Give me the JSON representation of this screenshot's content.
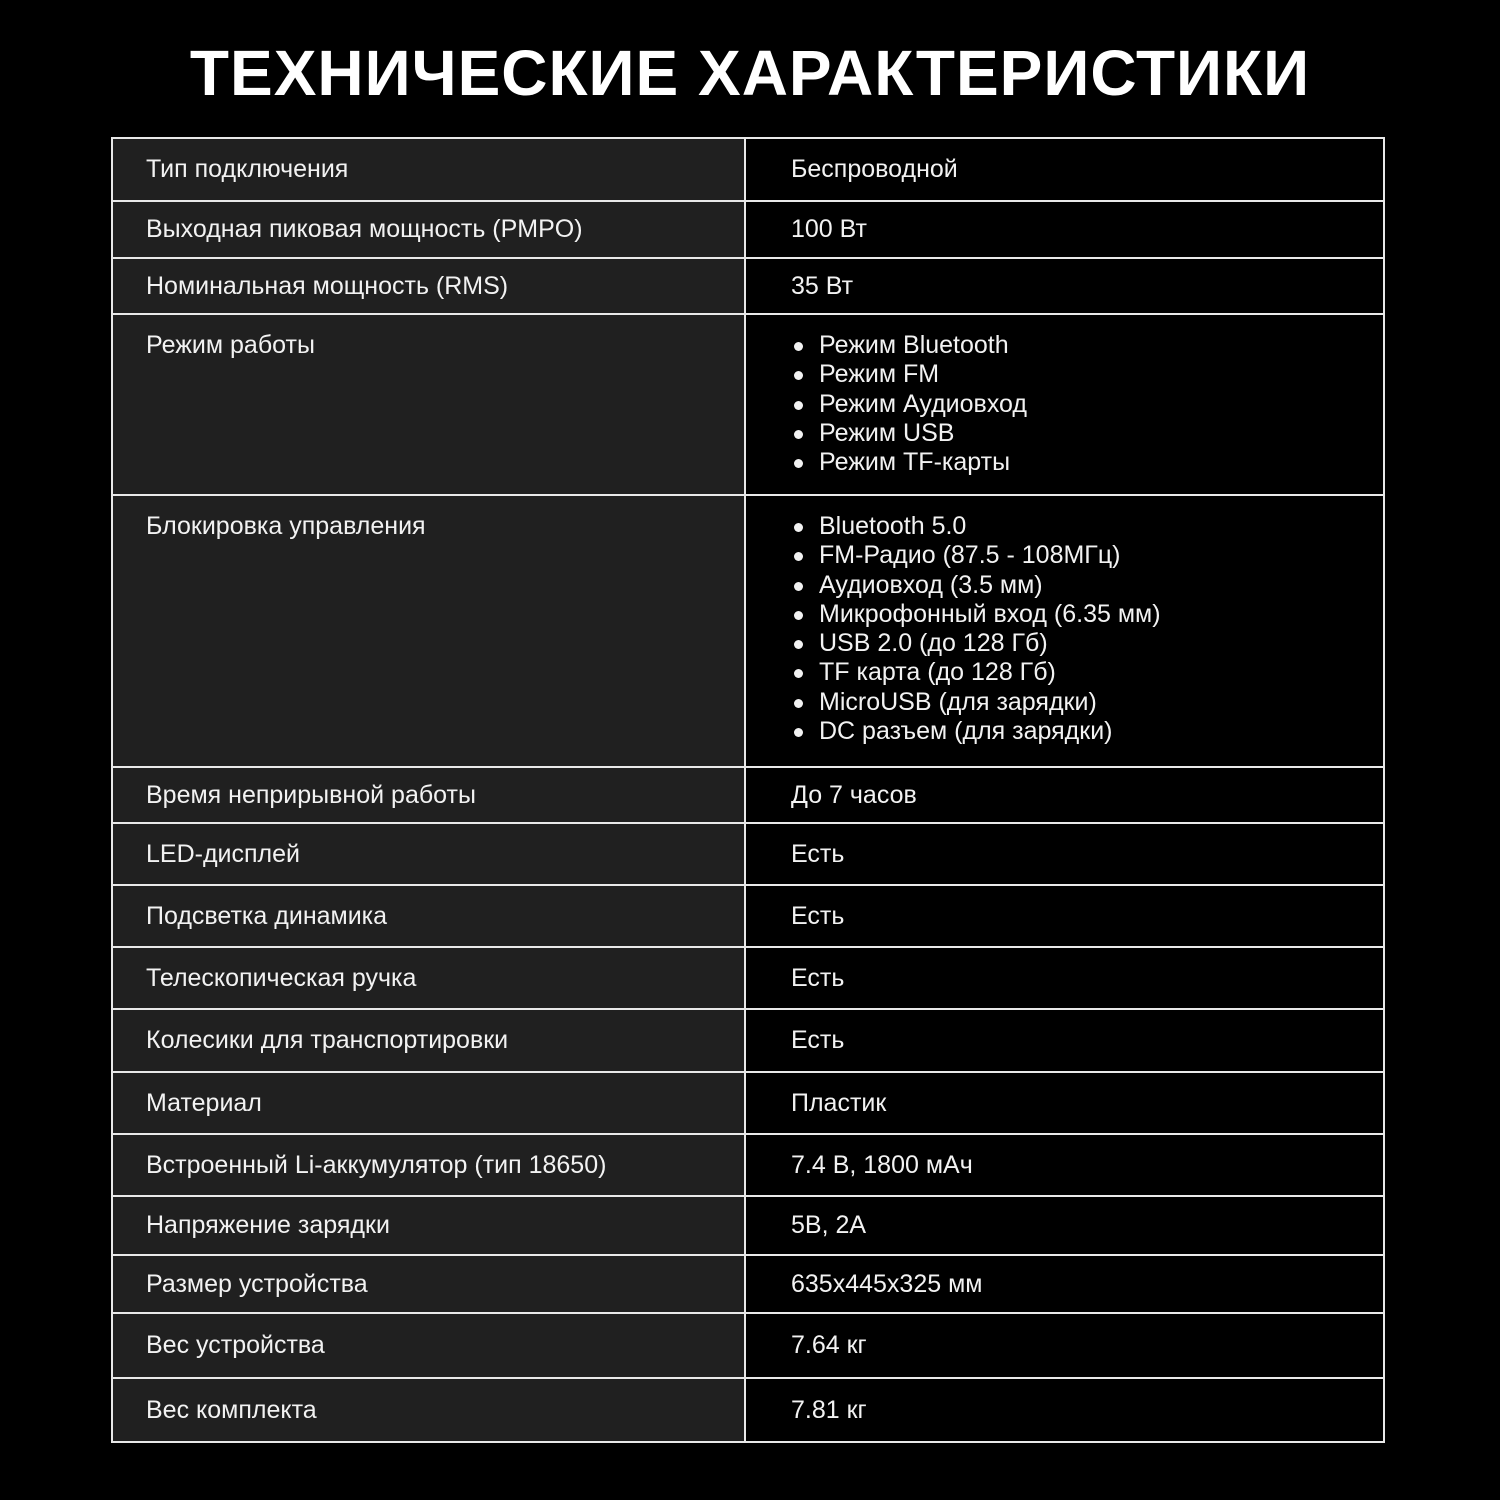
{
  "title": "ТЕХНИЧЕСКИЕ ХАРАКТЕРИСТИКИ",
  "rows": [
    {
      "label": "Тип подключения",
      "value": "Беспроводной"
    },
    {
      "label": "Выходная пиковая мощность (PMPO)",
      "value": "100 Вт"
    },
    {
      "label": "Номинальная мощность (RMS)",
      "value": "35 Вт"
    },
    {
      "label": "Режим работы",
      "items": [
        "Режим Bluetooth",
        "Режим FM",
        "Режим Аудиовход",
        "Режим USB",
        "Режим TF-карты"
      ]
    },
    {
      "label": "Блокировка управления",
      "items": [
        "Bluetooth 5.0",
        "FM-Радио (87.5 - 108МГц)",
        "Аудиовход (3.5 мм)",
        "Микрофонный вход (6.35 мм)",
        "USB 2.0 (до 128 Гб)",
        "TF карта (до 128 Гб)",
        "MicroUSB (для зарядки)",
        "DC разъем (для зарядки)"
      ]
    },
    {
      "label": "Время неприрывной работы",
      "value": "До 7 часов"
    },
    {
      "label": "LED-дисплей",
      "value": "Есть"
    },
    {
      "label": "Подсветка динамика",
      "value": "Есть"
    },
    {
      "label": "Телескопическая ручка",
      "value": "Есть"
    },
    {
      "label": "Колесики для транспортировки",
      "value": "Есть"
    },
    {
      "label": "Материал",
      "value": "Пластик"
    },
    {
      "label": "Встроенный Li-аккумулятор (тип 18650)",
      "value": "7.4 В, 1800 мАч"
    },
    {
      "label": "Напряжение зарядки",
      "value": "5В, 2А"
    },
    {
      "label": "Размер устройства",
      "value": "635x445x325 мм"
    },
    {
      "label": "Вес устройства",
      "value": "7.64 кг"
    },
    {
      "label": "Вес комплекта",
      "value": "7.81 кг"
    }
  ]
}
